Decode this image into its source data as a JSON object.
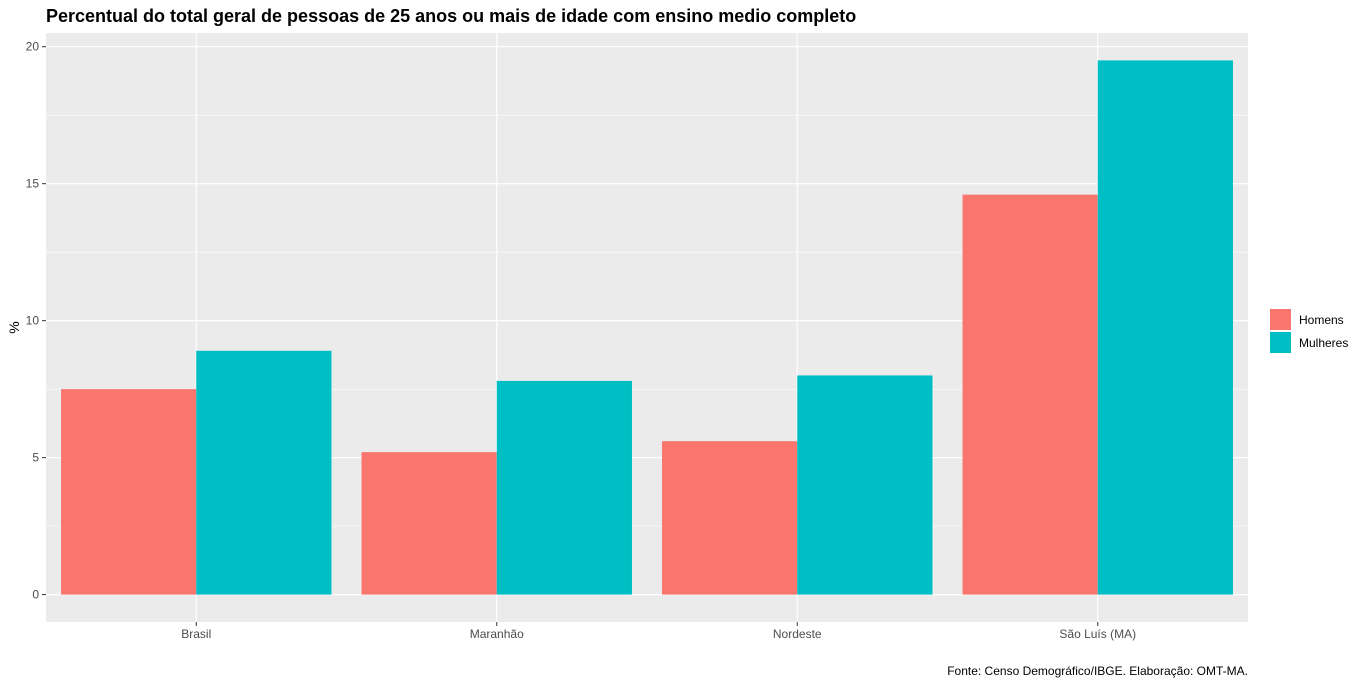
{
  "chart_data": {
    "type": "bar",
    "title": "Percentual do total geral de pessoas de 25 anos ou mais de idade com ensino medio completo",
    "xlabel": "",
    "ylabel": "%",
    "caption": "Fonte: Censo Demográfico/IBGE. Elaboração: OMT-MA.",
    "categories": [
      "Brasil",
      "Maranhão",
      "Nordeste",
      "São Luís (MA)"
    ],
    "series": [
      {
        "name": "Homens",
        "color": "#F8766D",
        "values": [
          7.5,
          5.2,
          5.6,
          14.6
        ]
      },
      {
        "name": "Mulheres",
        "color": "#00BFC4",
        "values": [
          8.9,
          7.8,
          8.0,
          19.5
        ]
      }
    ],
    "ylim": [
      -1,
      20.5
    ],
    "yticks": [
      0,
      5,
      10,
      15,
      20
    ],
    "grid": true,
    "background": "#EBEBEB",
    "legend_position": "right"
  }
}
